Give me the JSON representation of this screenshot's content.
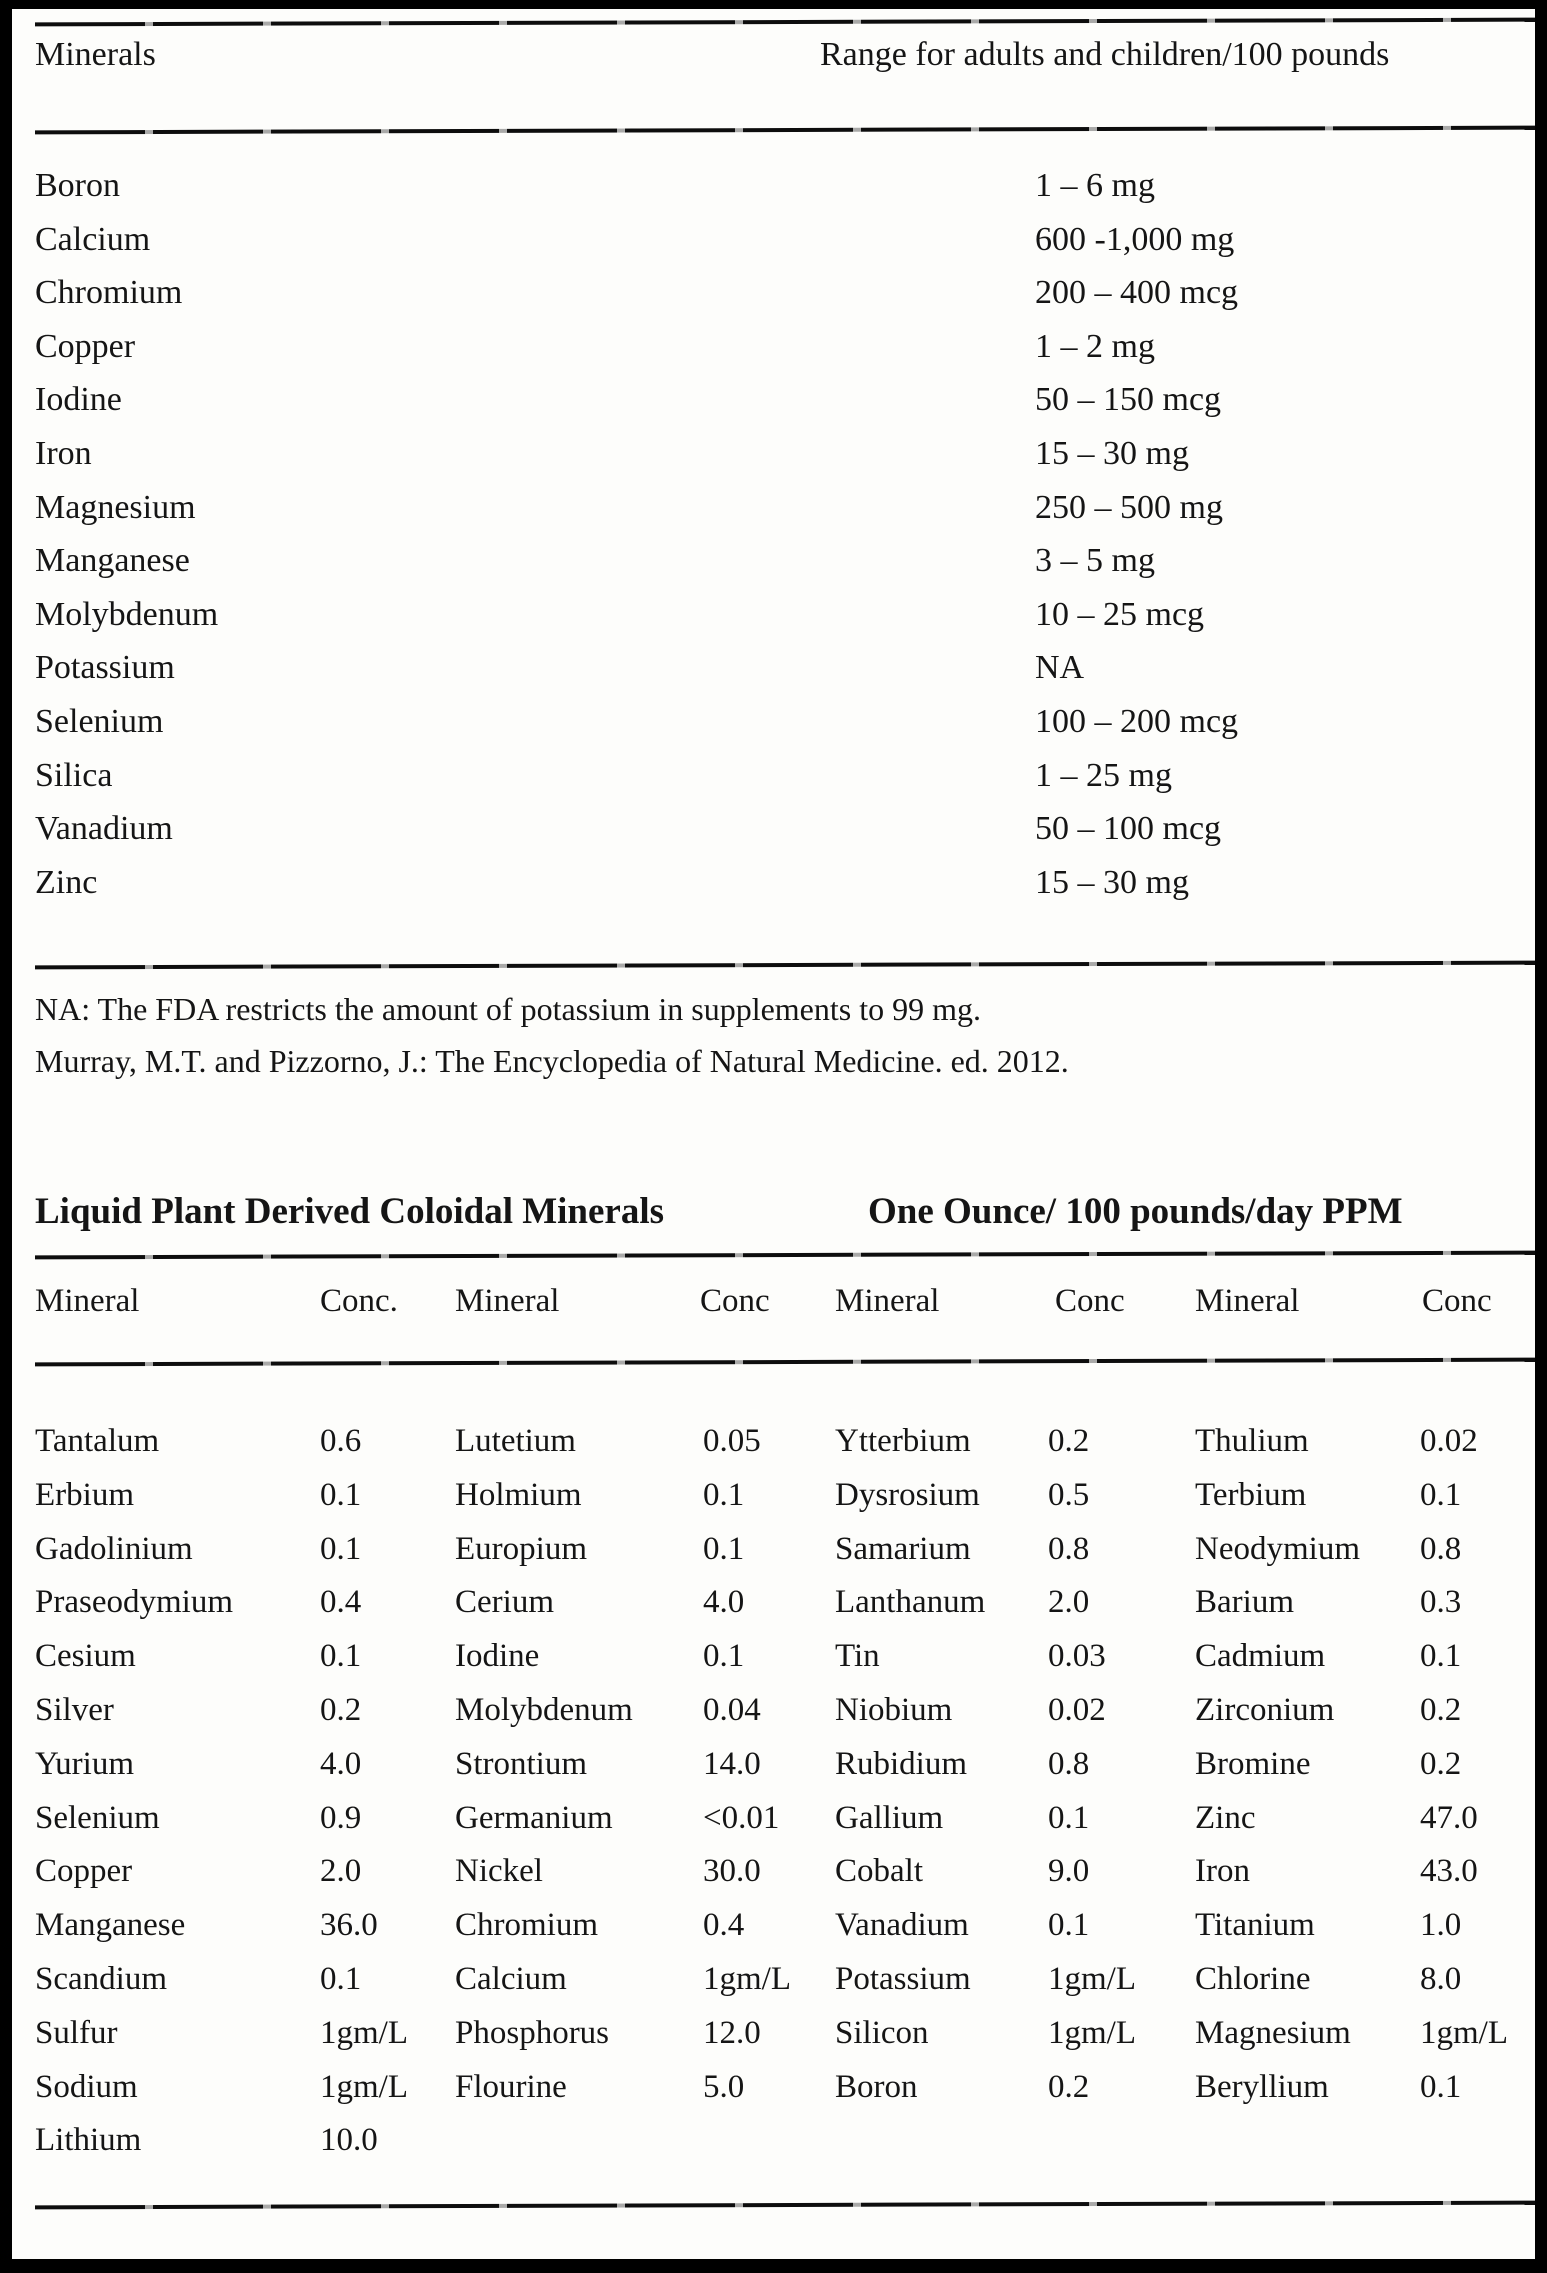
{
  "table1": {
    "header_left": "Minerals",
    "header_right": "Range for adults and children/100 pounds",
    "rows": [
      {
        "mineral": "Boron",
        "range": "1 – 6 mg"
      },
      {
        "mineral": "Calcium",
        "range": "600 -1,000 mg"
      },
      {
        "mineral": "Chromium",
        "range": "200 – 400 mcg"
      },
      {
        "mineral": "Copper",
        "range": "1 – 2 mg"
      },
      {
        "mineral": "Iodine",
        "range": "50 – 150 mcg"
      },
      {
        "mineral": "Iron",
        "range": "15 – 30 mg"
      },
      {
        "mineral": "Magnesium",
        "range": "250 – 500 mg"
      },
      {
        "mineral": "Manganese",
        "range": "3 – 5 mg"
      },
      {
        "mineral": "Molybdenum",
        "range": "10 – 25 mcg"
      },
      {
        "mineral": "Potassium",
        "range": "NA"
      },
      {
        "mineral": "Selenium",
        "range": "100 – 200 mcg"
      },
      {
        "mineral": "Silica",
        "range": "1 – 25 mg"
      },
      {
        "mineral": "Vanadium",
        "range": "50 – 100 mcg"
      },
      {
        "mineral": "Zinc",
        "range": "15 – 30 mg"
      }
    ]
  },
  "notes": [
    "NA: The FDA restricts the amount of potassium in supplements to 99 mg.",
    "Murray, M.T. and Pizzorno, J.: The Encyclopedia of Natural Medicine. ed. 2012."
  ],
  "table2": {
    "title_left": "Liquid Plant Derived Coloidal Minerals",
    "title_right": "One Ounce/ 100 pounds/day PPM",
    "headers": [
      "Mineral",
      "Conc.",
      "Mineral",
      "Conc",
      "Mineral",
      "Conc",
      "Mineral",
      "Conc"
    ],
    "rows": [
      {
        "c1": [
          "Tantalum",
          "0.6"
        ],
        "c2": [
          "Lutetium",
          "0.05"
        ],
        "c3": [
          "Ytterbium",
          "0.2"
        ],
        "c4": [
          "Thulium",
          "0.02"
        ]
      },
      {
        "c1": [
          "Erbium",
          "0.1"
        ],
        "c2": [
          "Holmium",
          "0.1"
        ],
        "c3": [
          "Dysrosium",
          "0.5"
        ],
        "c4": [
          "Terbium",
          "0.1"
        ]
      },
      {
        "c1": [
          "Gadolinium",
          "0.1"
        ],
        "c2": [
          "Europium",
          "0.1"
        ],
        "c3": [
          "Samarium",
          "0.8"
        ],
        "c4": [
          "Neodymium",
          "0.8"
        ]
      },
      {
        "c1": [
          "Praseodymium",
          "0.4"
        ],
        "c2": [
          "Cerium",
          "4.0"
        ],
        "c3": [
          "Lanthanum",
          "2.0"
        ],
        "c4": [
          "Barium",
          "0.3"
        ]
      },
      {
        "c1": [
          "Cesium",
          "0.1"
        ],
        "c2": [
          "Iodine",
          "0.1"
        ],
        "c3": [
          "Tin",
          "0.03"
        ],
        "c4": [
          "Cadmium",
          "0.1"
        ]
      },
      {
        "c1": [
          "Silver",
          "0.2"
        ],
        "c2": [
          "Molybdenum",
          "0.04"
        ],
        "c3": [
          "Niobium",
          "0.02"
        ],
        "c4": [
          "Zirconium",
          "0.2"
        ]
      },
      {
        "c1": [
          "Yurium",
          "4.0"
        ],
        "c2": [
          "Strontium",
          "14.0"
        ],
        "c3": [
          "Rubidium",
          "0.8"
        ],
        "c4": [
          "Bromine",
          "0.2"
        ]
      },
      {
        "c1": [
          "Selenium",
          "0.9"
        ],
        "c2": [
          "Germanium",
          "<0.01"
        ],
        "c3": [
          "Gallium",
          "0.1"
        ],
        "c4": [
          "Zinc",
          "47.0"
        ]
      },
      {
        "c1": [
          "Copper",
          "2.0"
        ],
        "c2": [
          "Nickel",
          "30.0"
        ],
        "c3": [
          "Cobalt",
          "9.0"
        ],
        "c4": [
          "Iron",
          "43.0"
        ]
      },
      {
        "c1": [
          "Manganese",
          "36.0"
        ],
        "c2": [
          "Chromium",
          "0.4"
        ],
        "c3": [
          "Vanadium",
          "0.1"
        ],
        "c4": [
          "Titanium",
          "1.0"
        ]
      },
      {
        "c1": [
          "Scandium",
          "0.1"
        ],
        "c2": [
          "Calcium",
          "1gm/L"
        ],
        "c3": [
          "Potassium",
          "1gm/L"
        ],
        "c4": [
          "Chlorine",
          "8.0"
        ]
      },
      {
        "c1": [
          "Sulfur",
          "1gm/L"
        ],
        "c2": [
          "Phosphorus",
          "12.0"
        ],
        "c3": [
          "Silicon",
          "1gm/L"
        ],
        "c4": [
          "Magnesium",
          "1gm/L"
        ]
      },
      {
        "c1": [
          "Sodium",
          "1gm/L"
        ],
        "c2": [
          "Flourine",
          "5.0"
        ],
        "c3": [
          "Boron",
          "0.2"
        ],
        "c4": [
          "Beryllium",
          "0.1"
        ]
      },
      {
        "c1": [
          "Lithium",
          "10.0"
        ],
        "c2": [
          "",
          ""
        ],
        "c3": [
          "",
          ""
        ],
        "c4": [
          "",
          ""
        ]
      }
    ]
  }
}
